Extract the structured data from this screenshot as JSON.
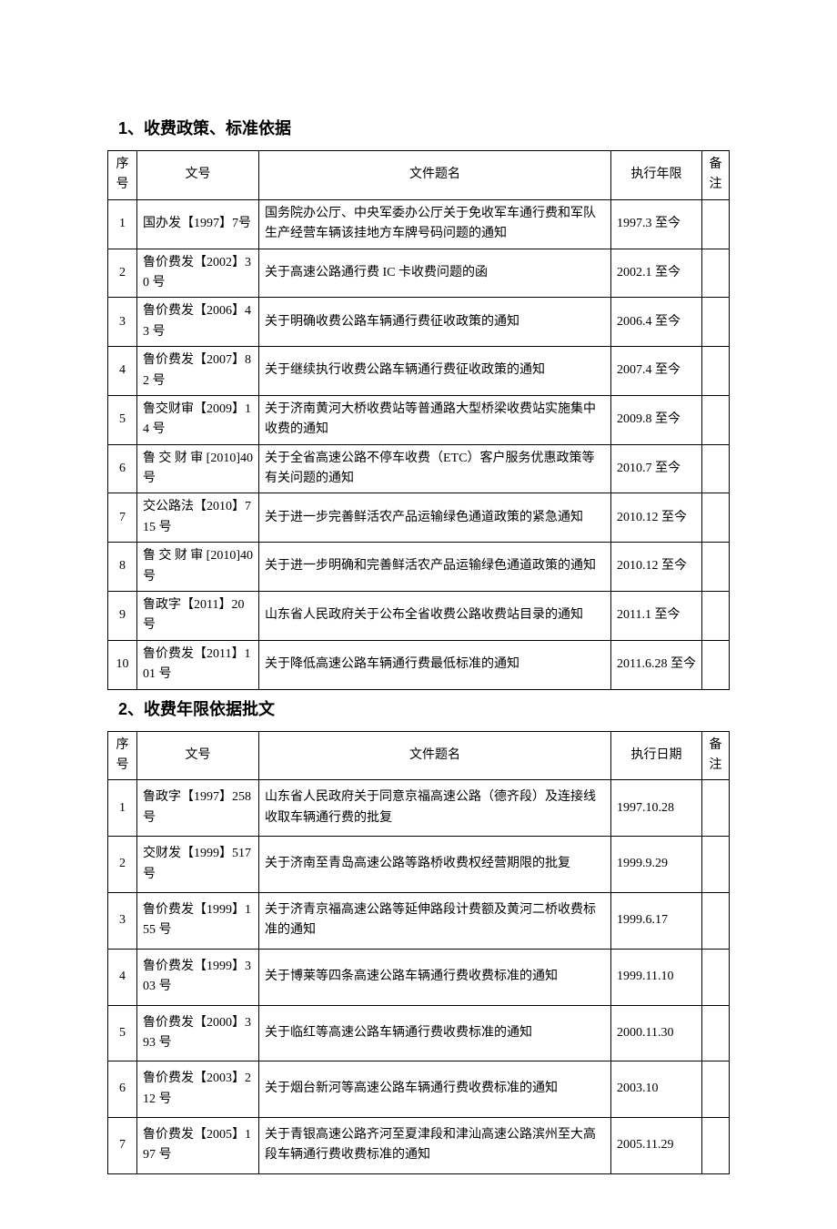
{
  "section1": {
    "heading": "1、收费政策、标准依据",
    "columns": [
      "序号",
      "文号",
      "文件题名",
      "执行年限",
      "备注"
    ],
    "rows": [
      {
        "seq": "1",
        "docno": "国办发【1997】7号",
        "title": "国务院办公厅、中央军委办公厅关于免收军车通行费和军队生产经营车辆该挂地方车牌号码问题的通知",
        "date": "1997.3 至今",
        "note": ""
      },
      {
        "seq": "2",
        "docno": "鲁价费发【2002】30 号",
        "title": "关于高速公路通行费 IC 卡收费问题的函",
        "date": "2002.1 至今",
        "note": ""
      },
      {
        "seq": "3",
        "docno": "鲁价费发【2006】43 号",
        "title": "关于明确收费公路车辆通行费征收政策的通知",
        "date": "2006.4 至今",
        "note": ""
      },
      {
        "seq": "4",
        "docno": "鲁价费发【2007】82 号",
        "title": "关于继续执行收费公路车辆通行费征收政策的通知",
        "date": "2007.4 至今",
        "note": ""
      },
      {
        "seq": "5",
        "docno": "鲁交财审【2009】14 号",
        "title": "关于济南黄河大桥收费站等普通路大型桥梁收费站实施集中收费的通知",
        "date": "2009.8 至今",
        "note": ""
      },
      {
        "seq": "6",
        "docno": "鲁交财审[2010]40 号",
        "title": "关于全省高速公路不停车收费（ETC）客户服务优惠政策等有关问题的通知",
        "date": "2010.7 至今",
        "note": "",
        "justify": true
      },
      {
        "seq": "7",
        "docno": "交公路法【2010】715 号",
        "title": "关于进一步完善鲜活农产品运输绿色通道政策的紧急通知",
        "date": "2010.12 至今",
        "note": ""
      },
      {
        "seq": "8",
        "docno": "鲁交财审[2010]40 号",
        "title": "关于进一步明确和完善鲜活农产品运输绿色通道政策的通知",
        "date": "2010.12 至今",
        "note": "",
        "justify": true
      },
      {
        "seq": "9",
        "docno": "鲁政字【2011】20号",
        "title": "山东省人民政府关于公布全省收费公路收费站目录的通知",
        "date": "2011.1 至今",
        "note": ""
      },
      {
        "seq": "10",
        "docno": "鲁价费发【2011】101 号",
        "title": "关于降低高速公路车辆通行费最低标准的通知",
        "date": "2011.6.28 至今",
        "note": ""
      }
    ]
  },
  "section2": {
    "heading": "2、收费年限依据批文",
    "columns": [
      "序号",
      "文号",
      "文件题名",
      "执行日期",
      "备注"
    ],
    "rows": [
      {
        "seq": "1",
        "docno": "鲁政字【1997】258 号",
        "title": "山东省人民政府关于同意京福高速公路（德齐段）及连接线收取车辆通行费的批复",
        "date": "1997.10.28",
        "note": ""
      },
      {
        "seq": "2",
        "docno": "交财发【1999】517 号",
        "title": "关于济南至青岛高速公路等路桥收费权经营期限的批复",
        "date": "1999.9.29",
        "note": ""
      },
      {
        "seq": "3",
        "docno": "鲁价费发【1999】155 号",
        "title": "关于济青京福高速公路等延伸路段计费额及黄河二桥收费标准的通知",
        "date": "1999.6.17",
        "note": ""
      },
      {
        "seq": "4",
        "docno": "鲁价费发【1999】303 号",
        "title": "关于博莱等四条高速公路车辆通行费收费标准的通知",
        "date": "1999.11.10",
        "note": ""
      },
      {
        "seq": "5",
        "docno": "鲁价费发【2000】393 号",
        "title": "关于临红等高速公路车辆通行费收费标准的通知",
        "date": "2000.11.30",
        "note": ""
      },
      {
        "seq": "6",
        "docno": "鲁价费发【2003】212 号",
        "title": "关于烟台新河等高速公路车辆通行费收费标准的通知",
        "date": "2003.10",
        "note": ""
      },
      {
        "seq": "7",
        "docno": "鲁价费发【2005】197 号",
        "title": "关于青银高速公路齐河至夏津段和津汕高速公路滨州至大高段车辆通行费收费标准的通知",
        "date": "2005.11.29",
        "note": ""
      }
    ]
  }
}
